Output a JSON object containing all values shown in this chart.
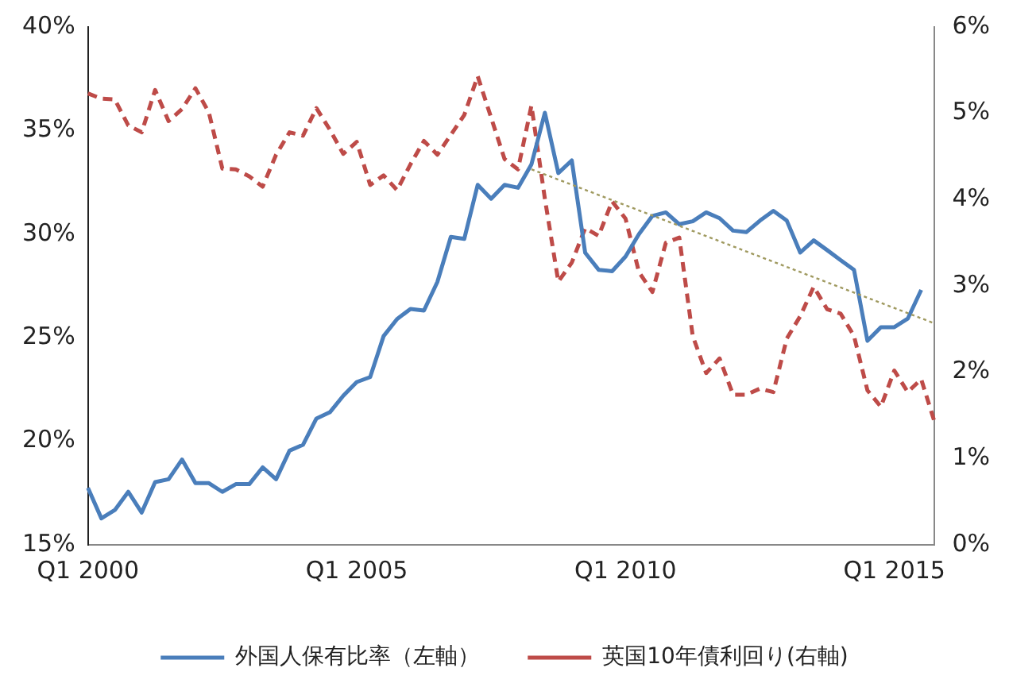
{
  "chart_data": {
    "type": "line",
    "categories": [
      "Q1 2000",
      null,
      null,
      null,
      null,
      null,
      null,
      null,
      null,
      null,
      null,
      null,
      null,
      null,
      null,
      null,
      null,
      null,
      null,
      null,
      "Q1 2005",
      null,
      null,
      null,
      null,
      null,
      null,
      null,
      null,
      null,
      null,
      null,
      null,
      null,
      null,
      null,
      null,
      null,
      null,
      null,
      "Q1 2010",
      null,
      null,
      null,
      null,
      null,
      null,
      null,
      null,
      null,
      null,
      null,
      null,
      null,
      null,
      null,
      null,
      null,
      null,
      null,
      "Q1 2015",
      null,
      null,
      null
    ],
    "series": [
      {
        "name": "外国人保有比率（左軸）",
        "color": "#4a7ebb",
        "line_style": "solid",
        "values": [
          17.75,
          16.28,
          16.68,
          17.56,
          16.56,
          18.03,
          18.17,
          19.12,
          17.98,
          17.98,
          17.56,
          17.93,
          17.93,
          18.74,
          18.17,
          19.55,
          19.83,
          21.1,
          21.4,
          22.2,
          22.86,
          23.1,
          25.08,
          25.9,
          26.39,
          26.31,
          27.69,
          29.87,
          29.77,
          32.38,
          31.71,
          32.38,
          32.24,
          33.37,
          35.86,
          32.95,
          33.56,
          29.1,
          28.28,
          28.21,
          28.92,
          30.0,
          30.88,
          31.05,
          30.48,
          30.62,
          31.05,
          30.77,
          30.17,
          30.1,
          30.65,
          31.12,
          30.65,
          29.11,
          29.7,
          29.23,
          28.75,
          28.28,
          24.85,
          25.51,
          25.51,
          25.92,
          27.31,
          null
        ]
      },
      {
        "name": "英国10年債利回り(右軸)",
        "color": "#be4b48",
        "axis": "y2",
        "line_style": "dashed",
        "values": [
          5.23,
          5.17,
          5.16,
          4.86,
          4.78,
          5.27,
          4.91,
          5.05,
          5.29,
          5.01,
          4.36,
          4.35,
          4.27,
          4.15,
          4.52,
          4.78,
          4.74,
          5.06,
          4.81,
          4.53,
          4.67,
          4.17,
          4.28,
          4.11,
          4.41,
          4.68,
          4.52,
          4.75,
          4.98,
          5.43,
          4.95,
          4.47,
          4.35,
          5.09,
          4.01,
          3.05,
          3.27,
          3.67,
          3.58,
          3.98,
          3.78,
          3.16,
          2.93,
          3.5,
          3.56,
          2.42,
          1.99,
          2.16,
          1.74,
          1.74,
          1.81,
          1.77,
          2.39,
          2.65,
          2.99,
          2.73,
          2.68,
          2.42,
          1.79,
          1.6,
          2.02,
          1.77,
          1.92,
          1.42
        ]
      },
      {
        "type": "line",
        "color": "#a09a60",
        "line_style": "dotted",
        "values": [
          null,
          null,
          null,
          null,
          null,
          null,
          null,
          null,
          null,
          null,
          null,
          null,
          null,
          null,
          null,
          null,
          null,
          null,
          null,
          null,
          null,
          null,
          null,
          null,
          null,
          null,
          null,
          null,
          null,
          null,
          null,
          null,
          null,
          33.13,
          null,
          null,
          null,
          null,
          null,
          null,
          null,
          null,
          null,
          null,
          null,
          null,
          null,
          null,
          null,
          null,
          null,
          null,
          null,
          null,
          null,
          null,
          null,
          null,
          null,
          null,
          null,
          null,
          null,
          25.69
        ]
      }
    ],
    "ylim": [
      15,
      40
    ],
    "yticks": [
      {
        "value": 15,
        "label": "15%"
      },
      {
        "value": 20,
        "label": "20%"
      },
      {
        "value": 25,
        "label": "25%"
      },
      {
        "value": 30,
        "label": "30%"
      },
      {
        "value": 35,
        "label": "35%"
      },
      {
        "value": 40,
        "label": "40%"
      }
    ],
    "y2lim": [
      0,
      6
    ],
    "y2ticks": [
      {
        "value": 0,
        "label": "0%"
      },
      {
        "value": 1,
        "label": "1%"
      },
      {
        "value": 2,
        "label": "2%"
      },
      {
        "value": 3,
        "label": "3%"
      },
      {
        "value": 4,
        "label": "4%"
      },
      {
        "value": 5,
        "label": "5%"
      },
      {
        "value": 6,
        "label": "6%"
      }
    ],
    "legend": "bottom",
    "grid": false,
    "marker": "none"
  }
}
